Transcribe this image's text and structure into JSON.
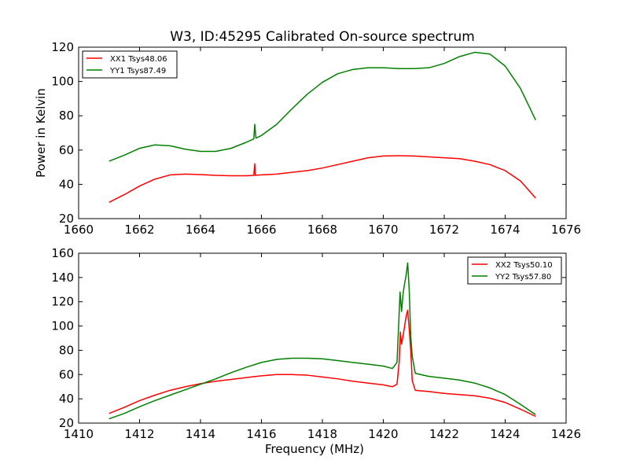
{
  "figure": {
    "title": "W3, ID:45295 Calibrated On-source spectrum"
  },
  "chart_data": [
    {
      "type": "line",
      "title": "W3, ID:45295 Calibrated On-source spectrum",
      "xlabel": "",
      "ylabel": "Power in Kelvin",
      "xlim": [
        1660,
        1676
      ],
      "ylim": [
        20,
        120
      ],
      "xticks": [
        1660,
        1662,
        1664,
        1666,
        1668,
        1670,
        1672,
        1674,
        1676
      ],
      "yticks": [
        20,
        40,
        60,
        80,
        100,
        120
      ],
      "grid": false,
      "legend_position": "top-left",
      "series": [
        {
          "name": "XX1 Tsys48.06",
          "color": "#ff0000",
          "points": [
            [
              1661.0,
              29.5
            ],
            [
              1661.5,
              34
            ],
            [
              1662.0,
              39
            ],
            [
              1662.5,
              43
            ],
            [
              1663.0,
              45.5
            ],
            [
              1663.5,
              46
            ],
            [
              1664.0,
              45.7
            ],
            [
              1664.5,
              45.2
            ],
            [
              1665.0,
              45
            ],
            [
              1665.5,
              45
            ],
            [
              1665.75,
              45.2
            ],
            [
              1665.78,
              52
            ],
            [
              1665.8,
              45.3
            ],
            [
              1666.0,
              45.5
            ],
            [
              1666.5,
              46
            ],
            [
              1667.0,
              47
            ],
            [
              1667.5,
              48
            ],
            [
              1668.0,
              49.5
            ],
            [
              1668.5,
              51.5
            ],
            [
              1669.0,
              53.5
            ],
            [
              1669.5,
              55.5
            ],
            [
              1670.0,
              56.5
            ],
            [
              1670.5,
              56.7
            ],
            [
              1671.0,
              56.5
            ],
            [
              1671.5,
              56
            ],
            [
              1672.0,
              55.5
            ],
            [
              1672.5,
              55
            ],
            [
              1673.0,
              53.5
            ],
            [
              1673.5,
              51.5
            ],
            [
              1674.0,
              48
            ],
            [
              1674.5,
              42
            ],
            [
              1675.0,
              32
            ]
          ]
        },
        {
          "name": "YY1 Tsys87.49",
          "color": "#008000",
          "points": [
            [
              1661.0,
              53.5
            ],
            [
              1661.5,
              57
            ],
            [
              1662.0,
              61
            ],
            [
              1662.5,
              63
            ],
            [
              1663.0,
              62.5
            ],
            [
              1663.5,
              60.5
            ],
            [
              1664.0,
              59.2
            ],
            [
              1664.5,
              59.2
            ],
            [
              1665.0,
              61
            ],
            [
              1665.5,
              64.5
            ],
            [
              1665.75,
              66.5
            ],
            [
              1665.78,
              75
            ],
            [
              1665.82,
              67
            ],
            [
              1666.0,
              68.5
            ],
            [
              1666.5,
              75
            ],
            [
              1667.0,
              84
            ],
            [
              1667.5,
              92.5
            ],
            [
              1668.0,
              99.5
            ],
            [
              1668.5,
              104.5
            ],
            [
              1669.0,
              107
            ],
            [
              1669.5,
              108
            ],
            [
              1670.0,
              108
            ],
            [
              1670.5,
              107.5
            ],
            [
              1671.0,
              107.5
            ],
            [
              1671.5,
              108
            ],
            [
              1672.0,
              110.5
            ],
            [
              1672.5,
              114.5
            ],
            [
              1673.0,
              117
            ],
            [
              1673.5,
              116
            ],
            [
              1674.0,
              109
            ],
            [
              1674.5,
              96
            ],
            [
              1675.0,
              77.5
            ]
          ]
        }
      ]
    },
    {
      "type": "line",
      "title": "",
      "xlabel": "Frequency (MHz)",
      "ylabel": "",
      "xlim": [
        1410,
        1426
      ],
      "ylim": [
        20,
        160
      ],
      "xticks": [
        1410,
        1412,
        1414,
        1416,
        1418,
        1420,
        1422,
        1424,
        1426
      ],
      "yticks": [
        20,
        40,
        60,
        80,
        100,
        120,
        140,
        160
      ],
      "grid": false,
      "legend_position": "top-right",
      "series": [
        {
          "name": "XX2 Tsys50.10",
          "color": "#ff0000",
          "points": [
            [
              1411.0,
              28
            ],
            [
              1411.5,
              33
            ],
            [
              1412.0,
              38.5
            ],
            [
              1412.5,
              43
            ],
            [
              1413.0,
              47
            ],
            [
              1413.5,
              50
            ],
            [
              1414.0,
              52.5
            ],
            [
              1414.5,
              54.5
            ],
            [
              1415.0,
              56
            ],
            [
              1415.5,
              57.5
            ],
            [
              1416.0,
              59
            ],
            [
              1416.5,
              60
            ],
            [
              1417.0,
              60
            ],
            [
              1417.5,
              59.5
            ],
            [
              1418.0,
              58
            ],
            [
              1418.5,
              56.5
            ],
            [
              1419.0,
              54.5
            ],
            [
              1419.5,
              53
            ],
            [
              1420.0,
              51.5
            ],
            [
              1420.3,
              50
            ],
            [
              1420.45,
              52
            ],
            [
              1420.52,
              70
            ],
            [
              1420.56,
              95
            ],
            [
              1420.6,
              85
            ],
            [
              1420.65,
              92
            ],
            [
              1420.7,
              100
            ],
            [
              1420.75,
              108
            ],
            [
              1420.8,
              113
            ],
            [
              1420.85,
              98
            ],
            [
              1420.9,
              80
            ],
            [
              1420.95,
              55
            ],
            [
              1421.05,
              47
            ],
            [
              1421.5,
              46
            ],
            [
              1422.0,
              44.5
            ],
            [
              1422.5,
              43.5
            ],
            [
              1423.0,
              42.5
            ],
            [
              1423.5,
              40.5
            ],
            [
              1424.0,
              37
            ],
            [
              1424.5,
              31.5
            ],
            [
              1425.0,
              25.5
            ]
          ]
        },
        {
          "name": "YY2 Tsys57.80",
          "color": "#008000",
          "points": [
            [
              1411.0,
              23.5
            ],
            [
              1411.5,
              28
            ],
            [
              1412.0,
              33.5
            ],
            [
              1412.5,
              38.5
            ],
            [
              1413.0,
              43
            ],
            [
              1413.5,
              47.5
            ],
            [
              1414.0,
              52
            ],
            [
              1414.5,
              56.5
            ],
            [
              1415.0,
              61.5
            ],
            [
              1415.5,
              66
            ],
            [
              1416.0,
              70
            ],
            [
              1416.5,
              72.5
            ],
            [
              1417.0,
              73.5
            ],
            [
              1417.5,
              73.5
            ],
            [
              1418.0,
              73
            ],
            [
              1418.5,
              71.5
            ],
            [
              1419.0,
              70
            ],
            [
              1419.5,
              68.5
            ],
            [
              1420.0,
              67
            ],
            [
              1420.3,
              65
            ],
            [
              1420.45,
              70
            ],
            [
              1420.52,
              110
            ],
            [
              1420.55,
              128
            ],
            [
              1420.6,
              112
            ],
            [
              1420.65,
              127
            ],
            [
              1420.7,
              135
            ],
            [
              1420.75,
              142
            ],
            [
              1420.8,
              152
            ],
            [
              1420.85,
              130
            ],
            [
              1420.9,
              92
            ],
            [
              1420.95,
              75
            ],
            [
              1421.05,
              61
            ],
            [
              1421.5,
              58.5
            ],
            [
              1422.0,
              57
            ],
            [
              1422.5,
              55.5
            ],
            [
              1423.0,
              53
            ],
            [
              1423.5,
              49
            ],
            [
              1424.0,
              43.5
            ],
            [
              1424.5,
              35.5
            ],
            [
              1425.0,
              27
            ]
          ]
        }
      ]
    }
  ]
}
